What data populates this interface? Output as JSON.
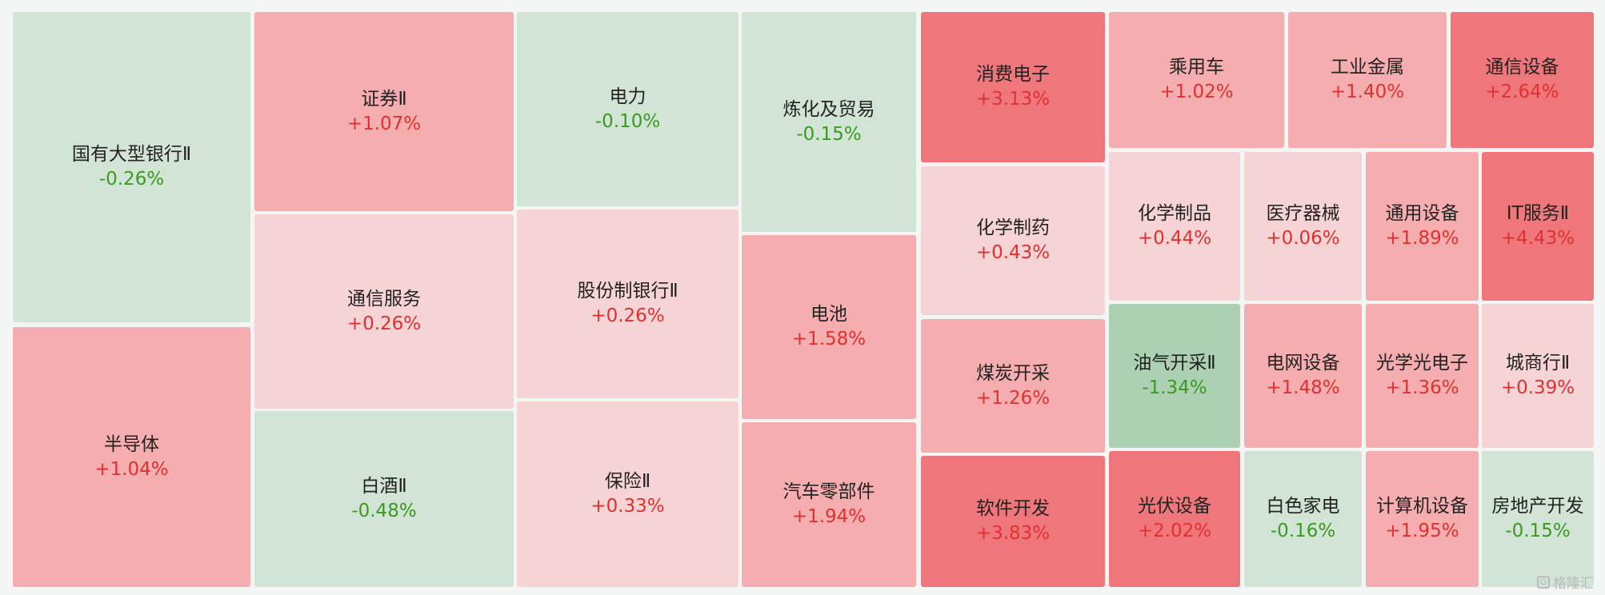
{
  "chart_data": {
    "type": "treemap",
    "colors": {
      "up_strong": "#ef777b",
      "up_mid": "#f5adb0",
      "up_light": "#f6d4d6",
      "down_light": "#d1e4d5",
      "down_strong": "#abd0b2",
      "up_text": "#e0312e",
      "down_text": "#3b9a1f"
    },
    "items": [
      {
        "name": "国有大型银行Ⅱ",
        "change": "-0.26%",
        "value": -0.26
      },
      {
        "name": "半导体",
        "change": "+1.04%",
        "value": 1.04
      },
      {
        "name": "证券Ⅱ",
        "change": "+1.07%",
        "value": 1.07
      },
      {
        "name": "通信服务",
        "change": "+0.26%",
        "value": 0.26
      },
      {
        "name": "白酒Ⅱ",
        "change": "-0.48%",
        "value": -0.48
      },
      {
        "name": "电力",
        "change": "-0.10%",
        "value": -0.1
      },
      {
        "name": "股份制银行Ⅱ",
        "change": "+0.26%",
        "value": 0.26
      },
      {
        "name": "保险Ⅱ",
        "change": "+0.33%",
        "value": 0.33
      },
      {
        "name": "炼化及贸易",
        "change": "-0.15%",
        "value": -0.15
      },
      {
        "name": "电池",
        "change": "+1.58%",
        "value": 1.58
      },
      {
        "name": "汽车零部件",
        "change": "+1.94%",
        "value": 1.94
      },
      {
        "name": "消费电子",
        "change": "+3.13%",
        "value": 3.13
      },
      {
        "name": "化学制药",
        "change": "+0.43%",
        "value": 0.43
      },
      {
        "name": "煤炭开采",
        "change": "+1.26%",
        "value": 1.26
      },
      {
        "name": "软件开发",
        "change": "+3.83%",
        "value": 3.83
      },
      {
        "name": "乘用车",
        "change": "+1.02%",
        "value": 1.02
      },
      {
        "name": "工业金属",
        "change": "+1.40%",
        "value": 1.4
      },
      {
        "name": "通信设备",
        "change": "+2.64%",
        "value": 2.64
      },
      {
        "name": "化学制品",
        "change": "+0.44%",
        "value": 0.44
      },
      {
        "name": "医疗器械",
        "change": "+0.06%",
        "value": 0.06
      },
      {
        "name": "通用设备",
        "change": "+1.89%",
        "value": 1.89
      },
      {
        "name": "IT服务Ⅱ",
        "change": "+4.43%",
        "value": 4.43
      },
      {
        "name": "油气开采Ⅱ",
        "change": "-1.34%",
        "value": -1.34
      },
      {
        "name": "电网设备",
        "change": "+1.48%",
        "value": 1.48
      },
      {
        "name": "光学光电子",
        "change": "+1.36%",
        "value": 1.36
      },
      {
        "name": "城商行Ⅱ",
        "change": "+0.39%",
        "value": 0.39
      },
      {
        "name": "光伏设备",
        "change": "+2.02%",
        "value": 2.02
      },
      {
        "name": "白色家电",
        "change": "-0.16%",
        "value": -0.16
      },
      {
        "name": "计算机设备",
        "change": "+1.95%",
        "value": 1.95
      },
      {
        "name": "房地产开发",
        "change": "-0.15%",
        "value": -0.15
      }
    ]
  },
  "watermark": {
    "text": "格隆汇",
    "icon": "logo-icon"
  }
}
